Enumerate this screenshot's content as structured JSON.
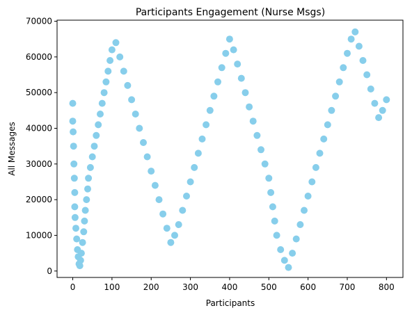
{
  "chart_data": {
    "type": "scatter",
    "title": "Participants Engagement (Nurse Msgs)",
    "xlabel": "Participants",
    "ylabel": "All Messages",
    "xlim": [
      -40,
      842
    ],
    "ylim": [
      -1800,
      70300
    ],
    "x_ticks": [
      0,
      100,
      200,
      300,
      400,
      500,
      600,
      700,
      800
    ],
    "y_ticks": [
      0,
      10000,
      20000,
      30000,
      40000,
      50000,
      60000,
      70000
    ],
    "x_tick_labels": [
      "0",
      "100",
      "200",
      "300",
      "400",
      "500",
      "600",
      "700",
      "800"
    ],
    "y_tick_labels": [
      "0",
      "10000",
      "20000",
      "30000",
      "40000",
      "50000",
      "60000",
      "70000"
    ],
    "grid": false,
    "legend": "none",
    "colors": {
      "points": "#87ceeb",
      "axes": "#000000",
      "background": "#ffffff"
    },
    "series": [
      {
        "description_of_density": "dense cloud",
        "x": [
          0,
          0,
          1,
          2,
          3,
          4,
          5,
          5,
          6,
          8,
          10,
          12,
          14,
          16,
          18,
          20,
          22,
          25,
          28,
          30,
          32,
          35,
          38,
          40,
          45,
          50,
          55,
          60,
          65,
          70,
          75,
          80,
          85,
          90,
          95,
          100,
          110,
          120,
          130,
          140,
          150,
          160,
          170,
          180,
          190,
          200,
          210,
          220,
          230,
          240,
          250,
          260,
          270,
          280,
          290,
          300,
          310,
          320,
          330,
          340,
          350,
          360,
          370,
          380,
          390,
          400,
          410,
          420,
          430,
          440,
          450,
          460,
          470,
          480,
          490,
          500,
          505,
          510,
          515,
          520,
          530,
          540,
          550,
          560,
          570,
          580,
          590,
          600,
          610,
          620,
          630,
          640,
          650,
          660,
          670,
          680,
          690,
          700,
          710,
          720,
          730,
          740,
          750,
          760,
          770,
          780,
          790,
          800
        ],
        "y": [
          47000,
          42000,
          39000,
          35000,
          30000,
          26000,
          22000,
          18000,
          15000,
          12000,
          9000,
          6000,
          4000,
          2000,
          1500,
          3000,
          5000,
          8000,
          11000,
          14000,
          17000,
          20000,
          23000,
          26000,
          29000,
          32000,
          35000,
          38000,
          41000,
          44000,
          47000,
          50000,
          53000,
          56000,
          59000,
          62000,
          64000,
          60000,
          56000,
          52000,
          48000,
          44000,
          40000,
          36000,
          32000,
          28000,
          24000,
          20000,
          16000,
          12000,
          8000,
          10000,
          13000,
          17000,
          21000,
          25000,
          29000,
          33000,
          37000,
          41000,
          45000,
          49000,
          53000,
          57000,
          61000,
          65000,
          62000,
          58000,
          54000,
          50000,
          46000,
          42000,
          38000,
          34000,
          30000,
          26000,
          22000,
          18000,
          14000,
          10000,
          6000,
          3000,
          1000,
          5000,
          9000,
          13000,
          17000,
          21000,
          25000,
          29000,
          33000,
          37000,
          41000,
          45000,
          49000,
          53000,
          57000,
          61000,
          65000,
          67000,
          63000,
          59000,
          55000,
          51000,
          47000,
          43000,
          45000,
          48000
        ]
      }
    ]
  }
}
